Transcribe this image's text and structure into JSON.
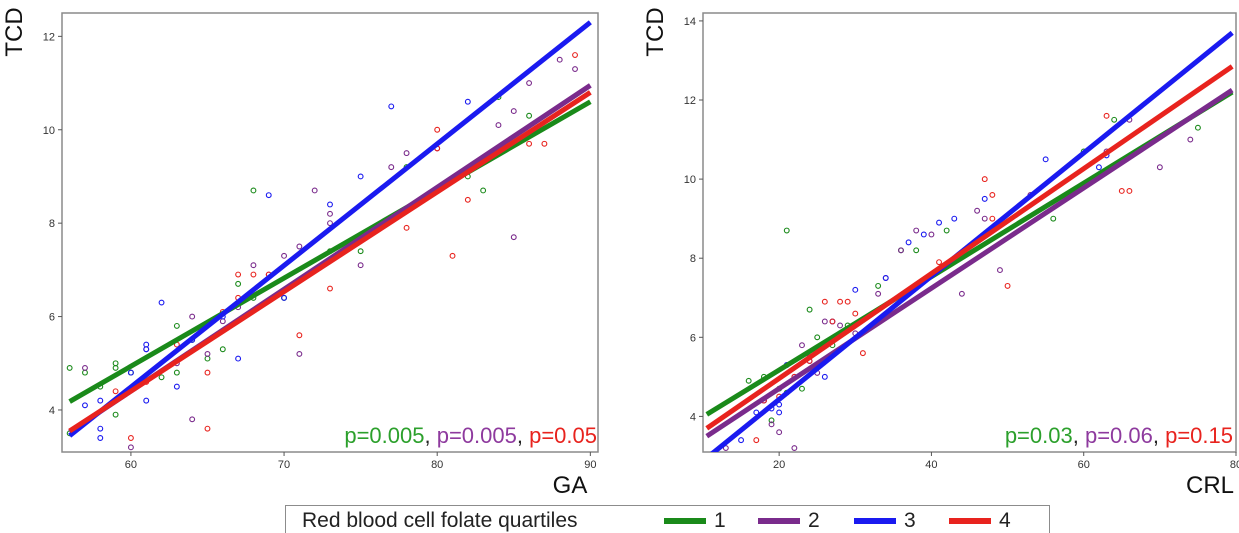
{
  "chart_data": [
    {
      "type": "scatter",
      "title": "",
      "xlabel": "GA",
      "ylabel": "TCD",
      "xlim": [
        55.5,
        90.5
      ],
      "ylim": [
        3.1,
        12.5
      ],
      "xticks": [
        60,
        70,
        80,
        90
      ],
      "yticks": [
        4,
        6,
        8,
        10,
        12
      ],
      "annotation": [
        {
          "text": "p=0.005",
          "color": "#2ca02c"
        },
        {
          "text": ", ",
          "color": "#222222"
        },
        {
          "text": "p=0.005",
          "color": "#8e3a9e"
        },
        {
          "text": ", ",
          "color": "#222222"
        },
        {
          "text": "p=0.05",
          "color": "#e8231e"
        }
      ],
      "series": [
        {
          "name": "1",
          "color": "#1a8a1a",
          "line": [
            [
              56,
              4.18
            ],
            [
              90,
              10.6
            ]
          ],
          "points": [
            [
              56,
              4.9
            ],
            [
              56,
              3.5
            ],
            [
              57,
              4.8
            ],
            [
              58,
              4.5
            ],
            [
              59,
              4.9
            ],
            [
              59,
              3.9
            ],
            [
              59,
              5.0
            ],
            [
              60,
              4.8
            ],
            [
              62,
              4.7
            ],
            [
              63,
              5.8
            ],
            [
              63,
              4.8
            ],
            [
              64,
              5.5
            ],
            [
              65,
              5.1
            ],
            [
              66,
              5.3
            ],
            [
              67,
              6.7
            ],
            [
              68,
              8.7
            ],
            [
              68,
              6.4
            ],
            [
              70,
              6.4
            ],
            [
              73,
              7.4
            ],
            [
              75,
              7.4
            ],
            [
              78,
              9.2
            ],
            [
              82,
              9.0
            ],
            [
              83,
              8.7
            ],
            [
              84,
              10.7
            ],
            [
              86,
              10.3
            ]
          ]
        },
        {
          "name": "2",
          "color": "#7a2b8c",
          "line": [
            [
              56,
              3.53
            ],
            [
              90,
              10.95
            ]
          ],
          "points": [
            [
              57,
              4.9
            ],
            [
              60,
              3.2
            ],
            [
              61,
              5.3
            ],
            [
              63,
              5.0
            ],
            [
              64,
              6.0
            ],
            [
              64,
              3.8
            ],
            [
              65,
              5.2
            ],
            [
              66,
              5.9
            ],
            [
              67,
              6.2
            ],
            [
              68,
              7.1
            ],
            [
              69,
              6.9
            ],
            [
              70,
              7.3
            ],
            [
              71,
              7.5
            ],
            [
              71,
              5.2
            ],
            [
              72,
              8.7
            ],
            [
              73,
              8.2
            ],
            [
              73,
              8.0
            ],
            [
              75,
              7.1
            ],
            [
              77,
              9.2
            ],
            [
              78,
              9.5
            ],
            [
              80,
              9.6
            ],
            [
              84,
              10.1
            ],
            [
              85,
              10.4
            ],
            [
              85,
              7.7
            ],
            [
              86,
              11.0
            ],
            [
              88,
              11.5
            ],
            [
              89,
              11.3
            ]
          ]
        },
        {
          "name": "3",
          "color": "#1a1af0",
          "line": [
            [
              56,
              3.45
            ],
            [
              90,
              12.3
            ]
          ],
          "points": [
            [
              57,
              4.1
            ],
            [
              58,
              4.2
            ],
            [
              58,
              3.6
            ],
            [
              58,
              3.4
            ],
            [
              60,
              4.8
            ],
            [
              61,
              5.4
            ],
            [
              61,
              5.3
            ],
            [
              61,
              4.2
            ],
            [
              62,
              6.3
            ],
            [
              63,
              4.5
            ],
            [
              64,
              5.5
            ],
            [
              66,
              6.0
            ],
            [
              67,
              5.1
            ],
            [
              69,
              8.6
            ],
            [
              70,
              6.4
            ],
            [
              73,
              8.4
            ],
            [
              75,
              9.0
            ],
            [
              77,
              10.5
            ],
            [
              82,
              10.6
            ]
          ]
        },
        {
          "name": "4",
          "color": "#e8231e",
          "line": [
            [
              56,
              3.55
            ],
            [
              90,
              10.8
            ]
          ],
          "points": [
            [
              59,
              4.4
            ],
            [
              60,
              3.4
            ],
            [
              61,
              4.6
            ],
            [
              63,
              5.4
            ],
            [
              65,
              4.8
            ],
            [
              65,
              3.6
            ],
            [
              66,
              6.1
            ],
            [
              67,
              6.9
            ],
            [
              67,
              6.4
            ],
            [
              68,
              6.9
            ],
            [
              69,
              6.9
            ],
            [
              71,
              5.6
            ],
            [
              73,
              6.6
            ],
            [
              78,
              7.9
            ],
            [
              80,
              10.0
            ],
            [
              80,
              9.6
            ],
            [
              81,
              7.3
            ],
            [
              82,
              8.5
            ],
            [
              86,
              9.7
            ],
            [
              87,
              9.7
            ],
            [
              89,
              11.6
            ]
          ]
        }
      ]
    },
    {
      "type": "scatter",
      "title": "",
      "xlabel": "CRL",
      "ylabel": "TCD",
      "xlim": [
        10,
        80
      ],
      "ylim": [
        3.1,
        14.2
      ],
      "xticks": [
        20,
        40,
        60,
        80
      ],
      "yticks": [
        4,
        6,
        8,
        10,
        12,
        14
      ],
      "annotation": [
        {
          "text": "p=0.03",
          "color": "#2ca02c"
        },
        {
          "text": ", ",
          "color": "#222222"
        },
        {
          "text": "p=0.06",
          "color": "#8e3a9e"
        },
        {
          "text": ", ",
          "color": "#222222"
        },
        {
          "text": "p=0.15",
          "color": "#e8231e"
        }
      ],
      "series": [
        {
          "name": "1",
          "color": "#1a8a1a",
          "line": [
            [
              10.5,
              4.05
            ],
            [
              79.5,
              12.2
            ]
          ],
          "points": [
            [
              16,
              4.9
            ],
            [
              18,
              5.0
            ],
            [
              19,
              3.9
            ],
            [
              20,
              4.7
            ],
            [
              21,
              8.7
            ],
            [
              21,
              4.6
            ],
            [
              23,
              4.7
            ],
            [
              24,
              6.7
            ],
            [
              25,
              6.0
            ],
            [
              27,
              5.8
            ],
            [
              29,
              6.3
            ],
            [
              33,
              7.3
            ],
            [
              36,
              8.2
            ],
            [
              38,
              8.2
            ],
            [
              42,
              8.7
            ],
            [
              56,
              9.0
            ],
            [
              60,
              10.7
            ],
            [
              64,
              11.5
            ],
            [
              75,
              11.3
            ]
          ]
        },
        {
          "name": "2",
          "color": "#7a2b8c",
          "line": [
            [
              10.5,
              3.5
            ],
            [
              79.5,
              12.25
            ]
          ],
          "points": [
            [
              13,
              3.2
            ],
            [
              18,
              4.4
            ],
            [
              19,
              3.8
            ],
            [
              20,
              3.6
            ],
            [
              22,
              3.2
            ],
            [
              23,
              5.8
            ],
            [
              24,
              5.5
            ],
            [
              25,
              5.1
            ],
            [
              26,
              6.4
            ],
            [
              28,
              6.3
            ],
            [
              30,
              6.1
            ],
            [
              33,
              7.1
            ],
            [
              34,
              7.5
            ],
            [
              36,
              8.2
            ],
            [
              38,
              8.7
            ],
            [
              40,
              8.6
            ],
            [
              44,
              7.1
            ],
            [
              46,
              9.2
            ],
            [
              47,
              9.0
            ],
            [
              49,
              7.7
            ],
            [
              53,
              9.6
            ],
            [
              63,
              10.7
            ],
            [
              66,
              11.5
            ],
            [
              70,
              10.3
            ],
            [
              74,
              11.0
            ]
          ]
        },
        {
          "name": "3",
          "color": "#1a1af0",
          "line": [
            [
              10.5,
              2.95
            ],
            [
              79.5,
              13.7
            ]
          ],
          "points": [
            [
              15,
              3.4
            ],
            [
              17,
              4.1
            ],
            [
              18,
              4.4
            ],
            [
              19,
              4.2
            ],
            [
              20,
              4.1
            ],
            [
              20,
              4.3
            ],
            [
              21,
              5.3
            ],
            [
              22,
              5.0
            ],
            [
              24,
              5.4
            ],
            [
              25,
              5.3
            ],
            [
              26,
              5.0
            ],
            [
              27,
              6.4
            ],
            [
              28,
              6.1
            ],
            [
              30,
              7.2
            ],
            [
              34,
              7.5
            ],
            [
              37,
              8.4
            ],
            [
              39,
              8.6
            ],
            [
              41,
              8.9
            ],
            [
              43,
              9.0
            ],
            [
              47,
              9.5
            ],
            [
              55,
              10.5
            ],
            [
              62,
              10.3
            ],
            [
              63,
              10.6
            ]
          ]
        },
        {
          "name": "4",
          "color": "#e8231e",
          "line": [
            [
              10.5,
              3.7
            ],
            [
              79.5,
              12.85
            ]
          ],
          "points": [
            [
              17,
              3.4
            ],
            [
              18,
              4.4
            ],
            [
              20,
              4.5
            ],
            [
              22,
              5.0
            ],
            [
              24,
              5.4
            ],
            [
              26,
              6.9
            ],
            [
              27,
              6.4
            ],
            [
              28,
              6.9
            ],
            [
              29,
              6.9
            ],
            [
              30,
              6.6
            ],
            [
              31,
              5.6
            ],
            [
              41,
              7.9
            ],
            [
              47,
              10.0
            ],
            [
              48,
              9.6
            ],
            [
              48,
              9.0
            ],
            [
              50,
              7.3
            ],
            [
              63,
              11.6
            ],
            [
              65,
              9.7
            ],
            [
              66,
              9.7
            ]
          ]
        }
      ]
    }
  ],
  "legend": {
    "title": "Red blood cell folate quartiles",
    "items": [
      {
        "label": "1",
        "color": "#1a8a1a"
      },
      {
        "label": "2",
        "color": "#7a2b8c"
      },
      {
        "label": "3",
        "color": "#1a1af0"
      },
      {
        "label": "4",
        "color": "#e8231e"
      }
    ]
  }
}
